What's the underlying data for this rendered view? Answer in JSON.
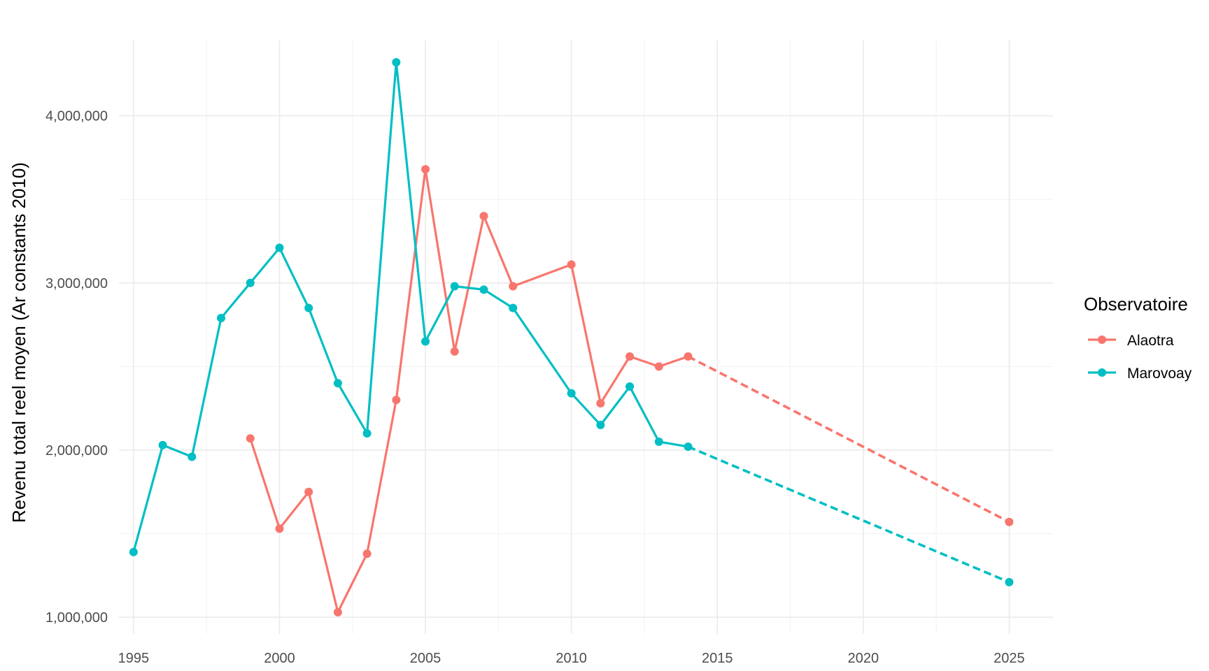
{
  "chart_data": {
    "type": "line",
    "xlabel": "",
    "ylabel": "Revenu total reel moyen (Ar constants 2010)",
    "xlim": [
      1994.5,
      2026.5
    ],
    "ylim": [
      900000,
      4450000
    ],
    "x_ticks": [
      1995,
      2000,
      2005,
      2010,
      2015,
      2020,
      2025
    ],
    "y_ticks": [
      1000000,
      2000000,
      3000000,
      4000000
    ],
    "y_tick_labels": [
      "1,000,000",
      "2,000,000",
      "3,000,000",
      "4,000,000"
    ],
    "grid": true,
    "legend": {
      "title": "Observatoire",
      "position": "right"
    },
    "series": [
      {
        "name": "Alaotra",
        "color": "#F8766D",
        "points": [
          [
            1999,
            2070000
          ],
          [
            2000,
            1530000
          ],
          [
            2001,
            1750000
          ],
          [
            2002,
            1030000
          ],
          [
            2003,
            1380000
          ],
          [
            2004,
            2300000
          ],
          [
            2005,
            3680000
          ],
          [
            2006,
            2590000
          ],
          [
            2007,
            3400000
          ],
          [
            2008,
            2980000
          ],
          [
            2010,
            3110000
          ],
          [
            2011,
            2280000
          ],
          [
            2012,
            2560000
          ],
          [
            2013,
            2500000
          ],
          [
            2014,
            2560000
          ]
        ],
        "projection": [
          [
            2014,
            2560000
          ],
          [
            2025,
            1570000
          ]
        ]
      },
      {
        "name": "Marovoay",
        "color": "#00BFC4",
        "points": [
          [
            1995,
            1390000
          ],
          [
            1996,
            2030000
          ],
          [
            1997,
            1960000
          ],
          [
            1998,
            2790000
          ],
          [
            1999,
            3000000
          ],
          [
            2000,
            3210000
          ],
          [
            2001,
            2850000
          ],
          [
            2002,
            2400000
          ],
          [
            2003,
            2100000
          ],
          [
            2004,
            4320000
          ],
          [
            2005,
            2650000
          ],
          [
            2006,
            2980000
          ],
          [
            2007,
            2960000
          ],
          [
            2008,
            2850000
          ],
          [
            2010,
            2340000
          ],
          [
            2011,
            2150000
          ],
          [
            2012,
            2380000
          ],
          [
            2013,
            2050000
          ],
          [
            2014,
            2020000
          ]
        ],
        "projection": [
          [
            2014,
            2020000
          ],
          [
            2025,
            1210000
          ]
        ]
      }
    ]
  }
}
